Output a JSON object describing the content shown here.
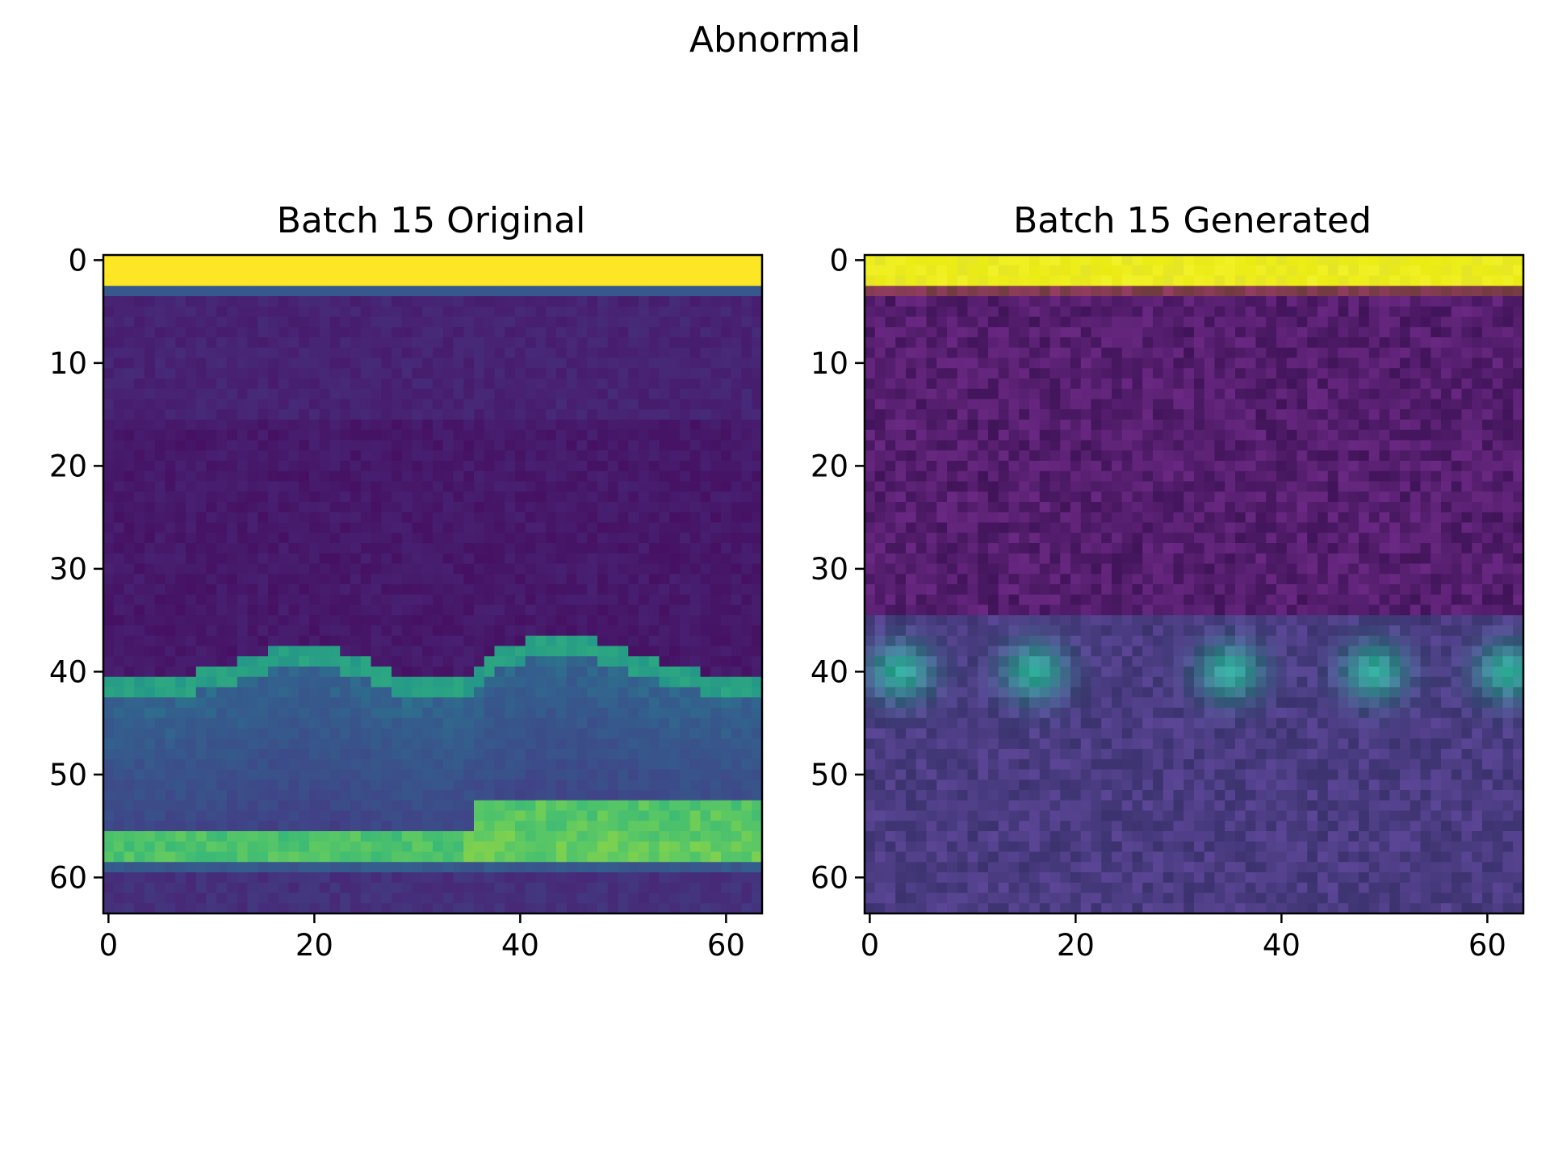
{
  "figure": {
    "title": "Abnormal"
  },
  "chart_data": [
    {
      "type": "heatmap",
      "title": "Batch 15 Original",
      "colormap": "viridis",
      "image_size": [
        64,
        64
      ],
      "xlim": [
        -0.5,
        63.5
      ],
      "ylim": [
        63.5,
        -0.5
      ],
      "xticks": [
        0,
        20,
        40,
        60
      ],
      "yticks": [
        0,
        10,
        20,
        30,
        40,
        50,
        60
      ],
      "grid": false,
      "profile": {
        "top_bright_rows": [
          0,
          2
        ],
        "gray_row": 3,
        "dark_band_rows": [
          4,
          38
        ],
        "hill_peaks_x": [
          19,
          44
        ],
        "valley_x": 32,
        "bright_stripe_rows": [
          54,
          58
        ]
      }
    },
    {
      "type": "heatmap",
      "title": "Batch 15 Generated",
      "colormap": "rgb",
      "image_size": [
        64,
        64
      ],
      "xlim": [
        -0.5,
        63.5
      ],
      "ylim": [
        63.5,
        -0.5
      ],
      "xticks": [
        0,
        20,
        40,
        60
      ],
      "yticks": [
        0,
        10,
        20,
        30,
        40,
        50,
        60
      ],
      "grid": false,
      "profile": {
        "top_bright_rows": [
          0,
          2
        ],
        "dark_band_rows": [
          4,
          35
        ],
        "blob_centers_x": [
          3,
          16,
          35,
          49,
          62
        ],
        "band_rows": [
          36,
          46
        ]
      }
    }
  ]
}
